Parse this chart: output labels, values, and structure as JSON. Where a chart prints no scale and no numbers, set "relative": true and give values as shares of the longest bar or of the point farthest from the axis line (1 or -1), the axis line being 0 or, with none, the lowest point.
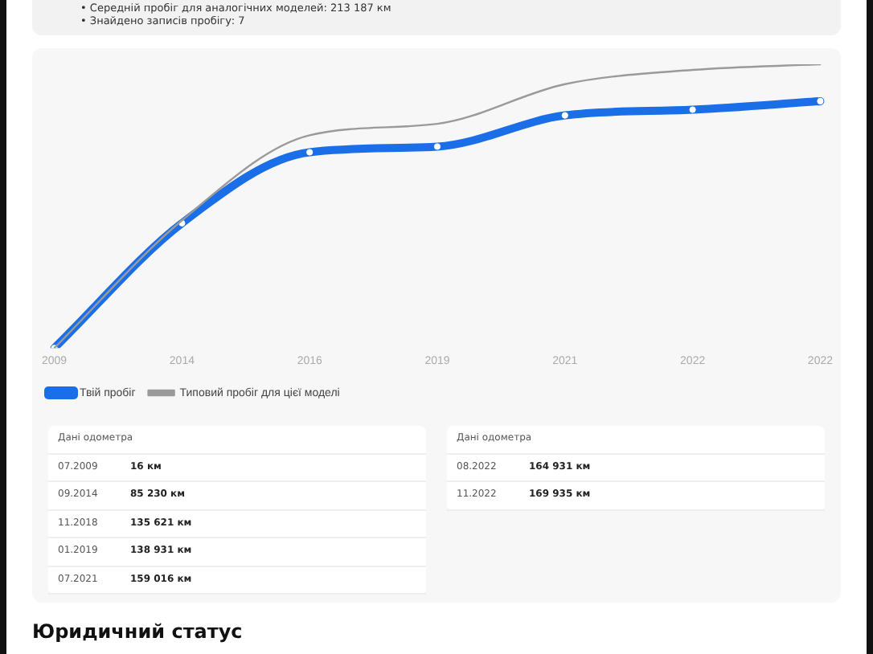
{
  "chart_data": {
    "type": "line",
    "relative": true,
    "categories": [
      "2009",
      "2014",
      "2016",
      "2019",
      "2021",
      "2022",
      "2022"
    ],
    "series": [
      {
        "name": "Твій пробіг",
        "color": "#1a6fe8",
        "values": [
          0,
          0.44,
          0.69,
          0.71,
          0.82,
          0.84,
          0.87
        ],
        "marker": "circle"
      },
      {
        "name": "Типовий пробіг для цієї моделі",
        "color": "#9a9a9a",
        "values": [
          0,
          0.45,
          0.75,
          0.79,
          0.93,
          0.98,
          1.0
        ]
      }
    ],
    "legend": "bottom left",
    "grid": false,
    "annotations": [
      "• Середній пробіг для аналогічних моделей: 213 187 км",
      "• Знайдено записів пробігу: 7",
      "Дані одометра",
      "07.2009",
      "16 км",
      "09.2014",
      "85 230 км",
      "11.2018",
      "135 621 км",
      "01.2019",
      "138 931 км",
      "07.2021",
      "159 016 км",
      "Дані одометра",
      "08.2022",
      "164 931 км",
      "11.2022",
      "169 935 км",
      "Юридичний статус"
    ]
  }
}
